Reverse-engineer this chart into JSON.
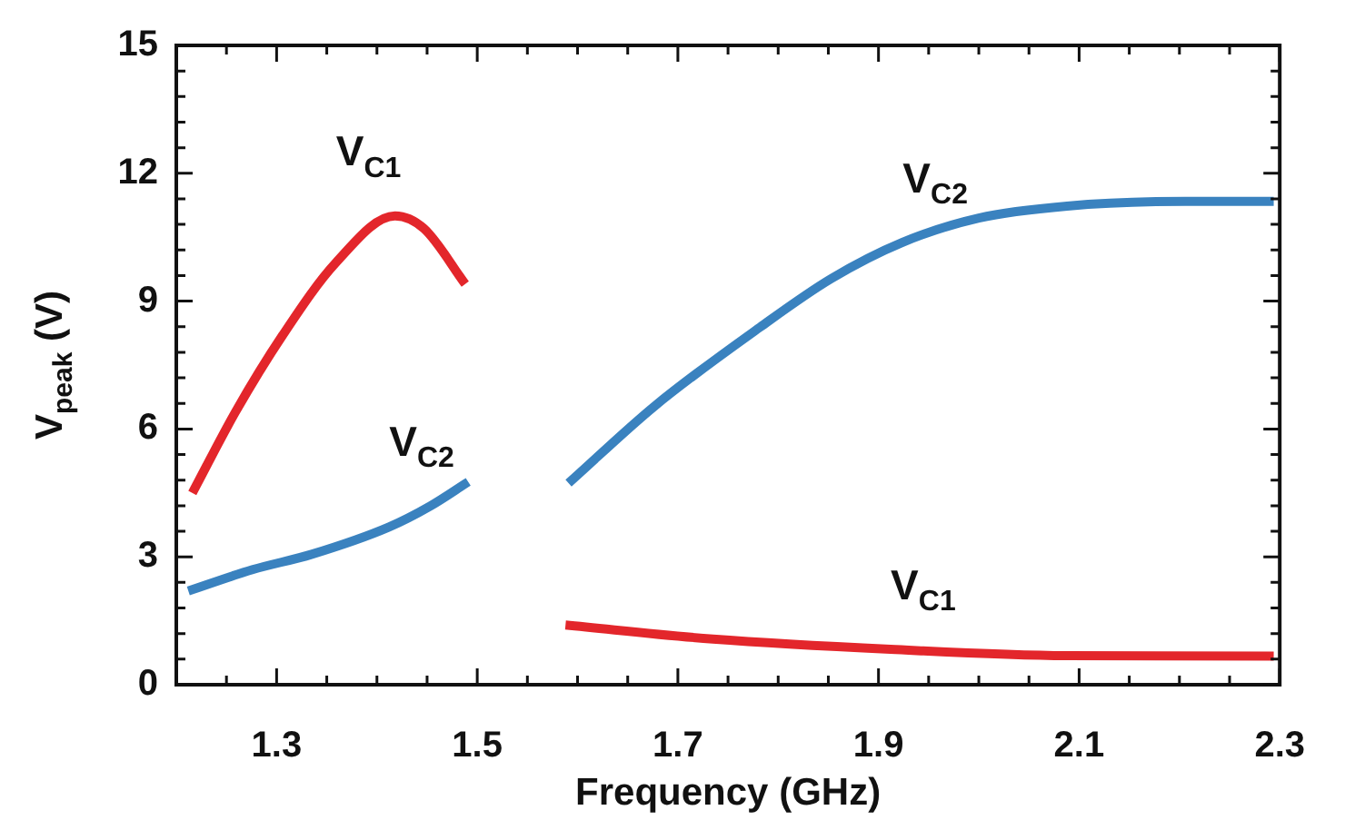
{
  "chart_data": {
    "type": "line",
    "xlabel": "Frequency (GHz)",
    "ylabel": "V$_{peak}$ (V)",
    "xlim": [
      1.2,
      2.3
    ],
    "xticks": [
      {
        "value": 1.2,
        "label": null
      },
      {
        "value": 1.25,
        "label": null
      },
      1.3,
      {
        "value": 1.35,
        "label": null
      },
      {
        "value": 1.4,
        "label": null
      },
      {
        "value": 1.45,
        "label": null
      },
      1.5,
      {
        "value": 1.55,
        "label": null
      },
      {
        "value": 1.6,
        "label": null
      },
      {
        "value": 1.65,
        "label": null
      },
      1.7,
      {
        "value": 1.75,
        "label": null
      },
      {
        "value": 1.8,
        "label": null
      },
      {
        "value": 1.85,
        "label": null
      },
      1.9,
      {
        "value": 1.95,
        "label": null
      },
      {
        "value": 2.0,
        "label": null
      },
      {
        "value": 2.05,
        "label": null
      },
      2.1,
      {
        "value": 2.15,
        "label": null
      },
      {
        "value": 2.2,
        "label": null
      },
      {
        "value": 2.25,
        "label": null
      },
      2.3
    ],
    "ylim": [
      0,
      15
    ],
    "yticks": [
      0,
      {
        "value": 0.6,
        "label": null
      },
      {
        "value": 1.2,
        "label": null
      },
      {
        "value": 1.8,
        "label": null
      },
      {
        "value": 2.4,
        "label": null
      },
      3,
      {
        "value": 3.6,
        "label": null
      },
      {
        "value": 4.2,
        "label": null
      },
      {
        "value": 4.8,
        "label": null
      },
      {
        "value": 5.4,
        "label": null
      },
      6,
      {
        "value": 6.6,
        "label": null
      },
      {
        "value": 7.2,
        "label": null
      },
      {
        "value": 7.8,
        "label": null
      },
      {
        "value": 8.4,
        "label": null
      },
      9,
      {
        "value": 9.6,
        "label": null
      },
      {
        "value": 10.2,
        "label": null
      },
      {
        "value": 10.8,
        "label": null
      },
      {
        "value": 11.4,
        "label": null
      },
      12,
      {
        "value": 12.6,
        "label": null
      },
      {
        "value": 13.2,
        "label": null
      },
      {
        "value": 13.8,
        "label": null
      },
      {
        "value": 14.4,
        "label": null
      },
      15
    ],
    "marker": "none",
    "line_style": "solid",
    "series": [
      {
        "name": "V$_{C1}$",
        "color": "#e3262b",
        "x": [
          1.216,
          1.259,
          1.306,
          1.359,
          1.418,
          1.447,
          1.488,
          1.54,
          1.588,
          1.735,
          1.912,
          2.088,
          2.294
        ],
        "values": [
          4.5,
          6.4,
          8.2,
          9.9,
          11.0,
          10.7,
          9.4,
          null,
          1.4,
          1.07,
          0.83,
          0.68,
          0.67
        ]
      },
      {
        "name": "V$_{C2}$",
        "color": "#3a82bf",
        "x": [
          1.212,
          1.276,
          1.335,
          1.412,
          1.453,
          1.491,
          1.54,
          1.591,
          1.677,
          1.782,
          1.853,
          1.924,
          2.0,
          2.088,
          2.206,
          2.294
        ],
        "values": [
          2.2,
          2.7,
          3.06,
          3.7,
          4.19,
          4.76,
          null,
          4.73,
          6.54,
          8.39,
          9.53,
          10.38,
          10.95,
          11.23,
          11.34,
          11.34
        ]
      }
    ]
  }
}
